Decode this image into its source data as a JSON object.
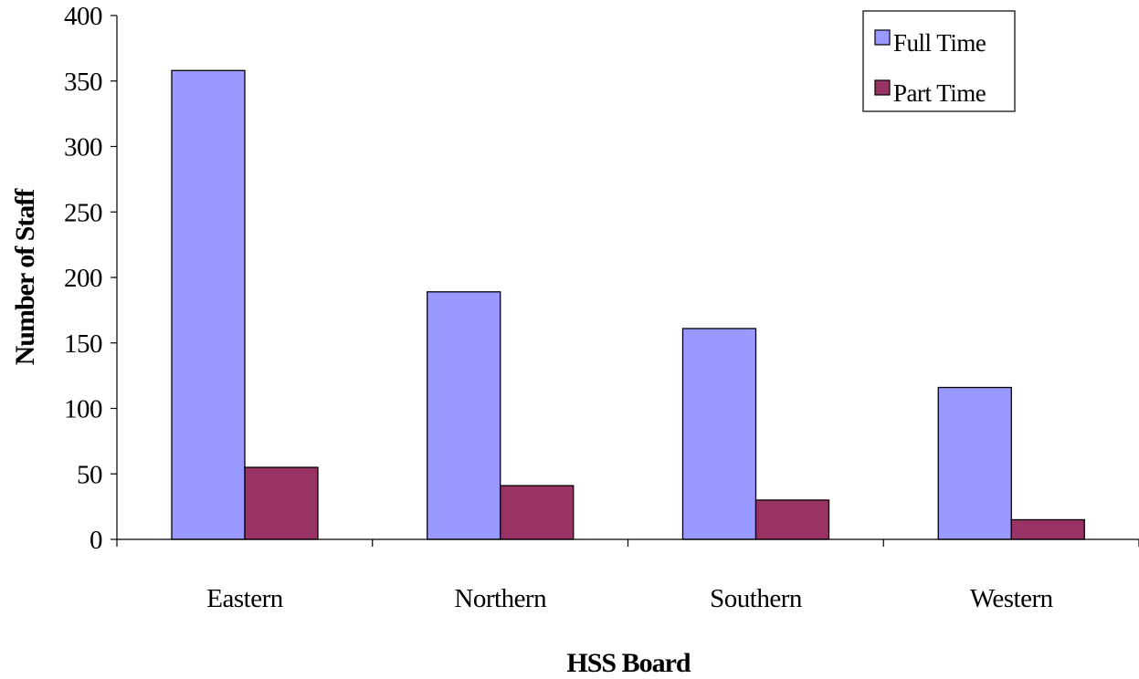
{
  "chart_data": {
    "type": "bar",
    "title": "",
    "xlabel": "HSS Board",
    "ylabel": "Number of Staff",
    "categories": [
      "Eastern",
      "Northern",
      "Southern",
      "Western"
    ],
    "series": [
      {
        "name": "Full Time",
        "values": [
          358,
          189,
          161,
          116
        ],
        "color": "#9999ff"
      },
      {
        "name": "Part Time",
        "values": [
          55,
          41,
          30,
          15
        ],
        "color": "#993366"
      }
    ],
    "ylim": [
      0,
      400
    ],
    "yticks": [
      "0",
      "50",
      "100",
      "150",
      "200",
      "250",
      "300",
      "350",
      "400"
    ],
    "grid": false,
    "legend_position": "top-right"
  }
}
